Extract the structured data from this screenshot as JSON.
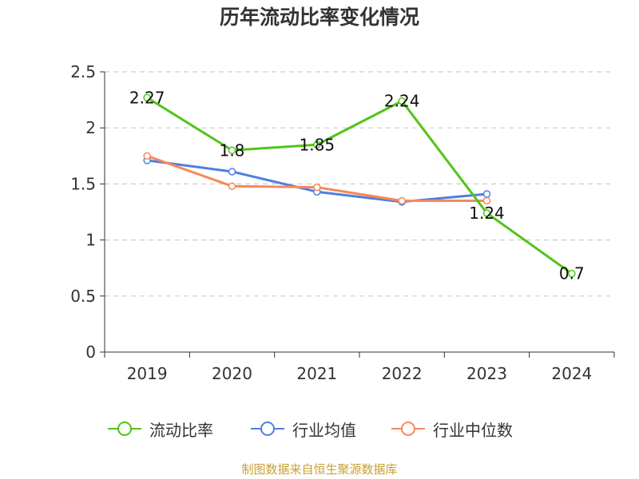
{
  "chart_data": {
    "type": "line",
    "title": "历年流动比率变化情况",
    "categories": [
      "2019",
      "2020",
      "2021",
      "2022",
      "2023",
      "2024"
    ],
    "ylim": [
      0,
      2.5
    ],
    "yticks": [
      "0",
      "0.5",
      "1",
      "1.5",
      "2",
      "2.5"
    ],
    "ytick_values": [
      0,
      0.5,
      1,
      1.5,
      2,
      2.5
    ],
    "grid": true,
    "legend_position": "bottom",
    "series": [
      {
        "name": "流动比率",
        "color": "#52c41a",
        "values": [
          2.27,
          1.8,
          1.85,
          2.24,
          1.24,
          0.7
        ],
        "labels": [
          "2.27",
          "1.8",
          "1.85",
          "2.24",
          "1.24",
          "0.7"
        ]
      },
      {
        "name": "行业均值",
        "color": "#4e7fe0",
        "values": [
          1.71,
          1.61,
          1.43,
          1.34,
          1.41,
          null
        ]
      },
      {
        "name": "行业中位数",
        "color": "#f5895a",
        "values": [
          1.75,
          1.48,
          1.47,
          1.35,
          1.35,
          null
        ]
      }
    ]
  },
  "source_note": "制图数据来自恒生聚源数据库"
}
